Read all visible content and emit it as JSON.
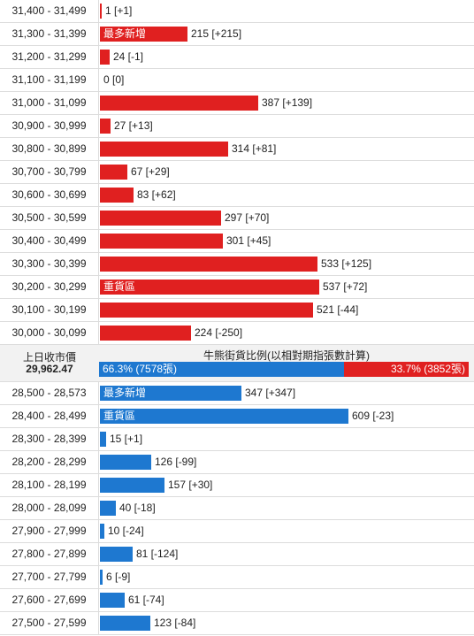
{
  "chart_data": {
    "type": "bar",
    "orientation": "horizontal",
    "colors": {
      "bull": "#e02020",
      "bear": "#1e78d0"
    },
    "bull_rows": [
      {
        "range": "31,400 - 31,499",
        "value": 1,
        "label": "1 [+1]",
        "tag": ""
      },
      {
        "range": "31,300 - 31,399",
        "value": 215,
        "label": "215 [+215]",
        "tag": "最多新增"
      },
      {
        "range": "31,200 - 31,299",
        "value": 24,
        "label": "24 [-1]",
        "tag": ""
      },
      {
        "range": "31,100 - 31,199",
        "value": 0,
        "label": "0 [0]",
        "tag": ""
      },
      {
        "range": "31,000 - 31,099",
        "value": 387,
        "label": "387 [+139]",
        "tag": ""
      },
      {
        "range": "30,900 - 30,999",
        "value": 27,
        "label": "27 [+13]",
        "tag": ""
      },
      {
        "range": "30,800 - 30,899",
        "value": 314,
        "label": "314 [+81]",
        "tag": ""
      },
      {
        "range": "30,700 - 30,799",
        "value": 67,
        "label": "67 [+29]",
        "tag": ""
      },
      {
        "range": "30,600 - 30,699",
        "value": 83,
        "label": "83 [+62]",
        "tag": ""
      },
      {
        "range": "30,500 - 30,599",
        "value": 297,
        "label": "297 [+70]",
        "tag": ""
      },
      {
        "range": "30,400 - 30,499",
        "value": 301,
        "label": "301 [+45]",
        "tag": ""
      },
      {
        "range": "30,300 - 30,399",
        "value": 533,
        "label": "533 [+125]",
        "tag": ""
      },
      {
        "range": "30,200 - 30,299",
        "value": 537,
        "label": "537 [+72]",
        "tag": "重貨區"
      },
      {
        "range": "30,100 - 30,199",
        "value": 521,
        "label": "521 [-44]",
        "tag": ""
      },
      {
        "range": "30,000 - 30,099",
        "value": 224,
        "label": "224 [-250]",
        "tag": ""
      }
    ],
    "summary": {
      "prev_close_label": "上日收市價",
      "prev_close_value": "29,962.47",
      "ratio_title": "牛熊街貨比例(以相對期指張數計算)",
      "bull_pct": 66.3,
      "bear_pct": 33.7,
      "bull_text": "66.3% (7578張)",
      "bear_text": "33.7% (3852張)"
    },
    "bear_rows": [
      {
        "range": "28,500 - 28,573",
        "value": 347,
        "label": "347 [+347]",
        "tag": "最多新增"
      },
      {
        "range": "28,400 - 28,499",
        "value": 609,
        "label": "609 [-23]",
        "tag": "重貨區"
      },
      {
        "range": "28,300 - 28,399",
        "value": 15,
        "label": "15 [+1]",
        "tag": ""
      },
      {
        "range": "28,200 - 28,299",
        "value": 126,
        "label": "126 [-99]",
        "tag": ""
      },
      {
        "range": "28,100 - 28,199",
        "value": 157,
        "label": "157 [+30]",
        "tag": ""
      },
      {
        "range": "28,000 - 28,099",
        "value": 40,
        "label": "40 [-18]",
        "tag": ""
      },
      {
        "range": "27,900 - 27,999",
        "value": 10,
        "label": "10 [-24]",
        "tag": ""
      },
      {
        "range": "27,800 - 27,899",
        "value": 81,
        "label": "81 [-124]",
        "tag": ""
      },
      {
        "range": "27,700 - 27,799",
        "value": 6,
        "label": "6 [-9]",
        "tag": ""
      },
      {
        "range": "27,600 - 27,699",
        "value": 61,
        "label": "61 [-74]",
        "tag": ""
      },
      {
        "range": "27,500 - 27,599",
        "value": 123,
        "label": "123 [-84]",
        "tag": ""
      }
    ]
  }
}
